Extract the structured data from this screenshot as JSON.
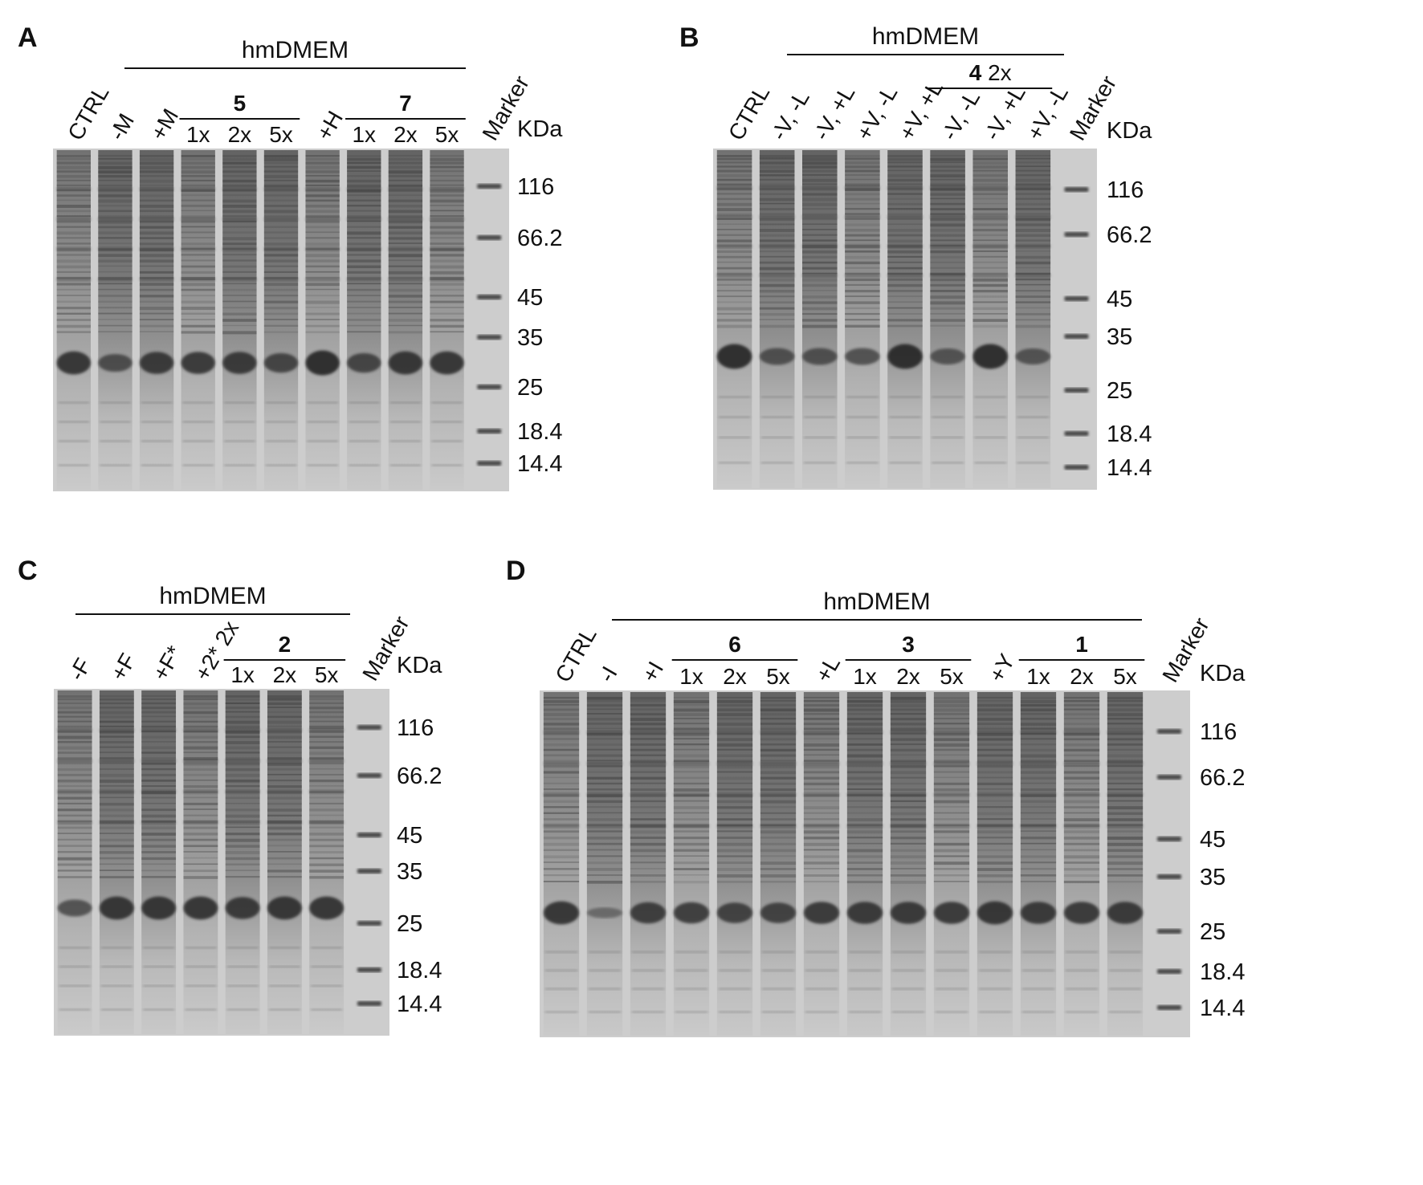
{
  "panels": [
    {
      "id": "A",
      "label": "A",
      "medium": "hmDMEM",
      "kda_label": "KDa",
      "lanes": [
        {
          "label": "CTRL",
          "rot": true
        },
        {
          "label": "-M",
          "rot": true
        },
        {
          "label": "+M",
          "rot": true
        },
        {
          "label": "1x",
          "rot": false
        },
        {
          "label": "2x",
          "rot": false
        },
        {
          "label": "5x",
          "rot": false
        },
        {
          "label": "+H",
          "rot": true
        },
        {
          "label": "1x",
          "rot": false
        },
        {
          "label": "2x",
          "rot": false
        },
        {
          "label": "5x",
          "rot": false
        },
        {
          "label": "Marker",
          "rot": true
        }
      ],
      "groups": [
        {
          "bold": "5",
          "text": "",
          "lanes": [
            3,
            5
          ]
        },
        {
          "bold": "7",
          "text": "",
          "lanes": [
            7,
            9
          ]
        }
      ],
      "markers": [
        "116",
        "66.2",
        "45",
        "35",
        "25",
        "18.4",
        "14.4"
      ],
      "band_intensity": [
        0.85,
        0.55,
        0.8,
        0.8,
        0.8,
        0.65,
        0.95,
        0.65,
        0.85,
        0.85
      ]
    },
    {
      "id": "B",
      "label": "B",
      "medium": "hmDMEM",
      "kda_label": "KDa",
      "lanes": [
        {
          "label": "CTRL",
          "rot": true
        },
        {
          "label": "-V, -L",
          "rot": true
        },
        {
          "label": "-V, +L",
          "rot": true
        },
        {
          "label": "+V, -L",
          "rot": true
        },
        {
          "label": "+V, +L",
          "rot": true
        },
        {
          "label": "-V, -L",
          "rot": true
        },
        {
          "label": "-V, +L",
          "rot": true
        },
        {
          "label": "+V, -L",
          "rot": true
        },
        {
          "label": "Marker",
          "rot": true
        }
      ],
      "groups": [
        {
          "bold": "4",
          "text": " 2x",
          "lanes": [
            5,
            7
          ]
        }
      ],
      "markers": [
        "116",
        "66.2",
        "45",
        "35",
        "25",
        "18.4",
        "14.4"
      ],
      "band_intensity": [
        0.95,
        0.5,
        0.5,
        0.5,
        0.95,
        0.45,
        0.95,
        0.45
      ]
    },
    {
      "id": "C",
      "label": "C",
      "medium": "hmDMEM",
      "kda_label": "KDa",
      "lanes": [
        {
          "label": "-F",
          "rot": true
        },
        {
          "label": "+F",
          "rot": true
        },
        {
          "label": "+F*",
          "rot": true
        },
        {
          "label": "+2* 2x",
          "rot": true
        },
        {
          "label": "1x",
          "rot": false
        },
        {
          "label": "2x",
          "rot": false
        },
        {
          "label": "5x",
          "rot": false
        },
        {
          "label": "Marker",
          "rot": true
        }
      ],
      "groups": [
        {
          "bold": "2",
          "text": "",
          "lanes": [
            4,
            6
          ]
        }
      ],
      "markers": [
        "116",
        "66.2",
        "45",
        "35",
        "25",
        "18.4",
        "14.4"
      ],
      "band_intensity": [
        0.5,
        0.85,
        0.85,
        0.85,
        0.8,
        0.85,
        0.85
      ]
    },
    {
      "id": "D",
      "label": "D",
      "medium": "hmDMEM",
      "kda_label": "KDa",
      "lanes": [
        {
          "label": "CTRL",
          "rot": true
        },
        {
          "label": "-I",
          "rot": true
        },
        {
          "label": "+I",
          "rot": true
        },
        {
          "label": "1x",
          "rot": false
        },
        {
          "label": "2x",
          "rot": false
        },
        {
          "label": "5x",
          "rot": false
        },
        {
          "label": "+L",
          "rot": true
        },
        {
          "label": "1x",
          "rot": false
        },
        {
          "label": "2x",
          "rot": false
        },
        {
          "label": "5x",
          "rot": false
        },
        {
          "label": "+Y",
          "rot": true
        },
        {
          "label": "1x",
          "rot": false
        },
        {
          "label": "2x",
          "rot": false
        },
        {
          "label": "5x",
          "rot": false
        },
        {
          "label": "Marker",
          "rot": true
        }
      ],
      "groups": [
        {
          "bold": "6",
          "text": "",
          "lanes": [
            3,
            5
          ]
        },
        {
          "bold": "3",
          "text": "",
          "lanes": [
            7,
            9
          ]
        },
        {
          "bold": "1",
          "text": "",
          "lanes": [
            11,
            13
          ]
        }
      ],
      "markers": [
        "116",
        "66.2",
        "45",
        "35",
        "25",
        "18.4",
        "14.4"
      ],
      "band_intensity": [
        0.85,
        0.15,
        0.75,
        0.75,
        0.7,
        0.7,
        0.8,
        0.8,
        0.8,
        0.8,
        0.85,
        0.8,
        0.8,
        0.8
      ]
    }
  ]
}
